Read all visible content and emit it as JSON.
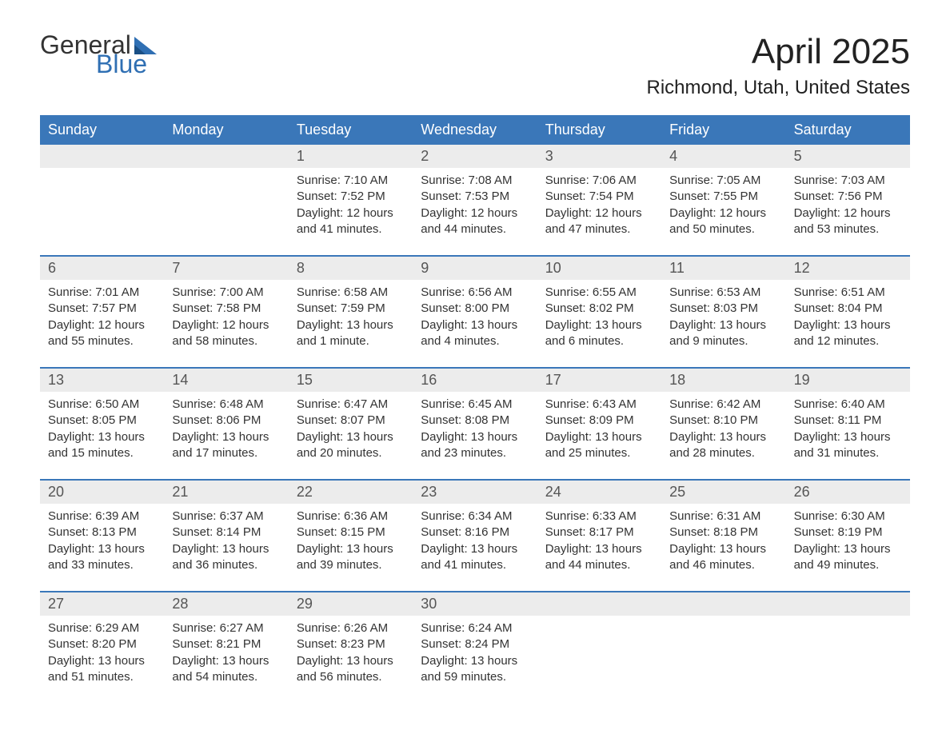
{
  "logo": {
    "general": "General",
    "blue": "Blue"
  },
  "header": {
    "month_title": "April 2025",
    "location": "Richmond, Utah, United States"
  },
  "style": {
    "accent_color": "#3a77b9",
    "header_text_color": "#ffffff",
    "daynum_bg": "#ececec",
    "body_text_color": "#333333",
    "logo_blue": "#2f6fb3",
    "background": "#ffffff",
    "title_fontsize": 44,
    "location_fontsize": 24,
    "dayheader_fontsize": 18,
    "cell_fontsize": 15
  },
  "day_names": [
    "Sunday",
    "Monday",
    "Tuesday",
    "Wednesday",
    "Thursday",
    "Friday",
    "Saturday"
  ],
  "weeks": [
    [
      {
        "num": "",
        "sunrise": "",
        "sunset": "",
        "daylight": ""
      },
      {
        "num": "",
        "sunrise": "",
        "sunset": "",
        "daylight": ""
      },
      {
        "num": "1",
        "sunrise": "Sunrise: 7:10 AM",
        "sunset": "Sunset: 7:52 PM",
        "daylight": "Daylight: 12 hours and 41 minutes."
      },
      {
        "num": "2",
        "sunrise": "Sunrise: 7:08 AM",
        "sunset": "Sunset: 7:53 PM",
        "daylight": "Daylight: 12 hours and 44 minutes."
      },
      {
        "num": "3",
        "sunrise": "Sunrise: 7:06 AM",
        "sunset": "Sunset: 7:54 PM",
        "daylight": "Daylight: 12 hours and 47 minutes."
      },
      {
        "num": "4",
        "sunrise": "Sunrise: 7:05 AM",
        "sunset": "Sunset: 7:55 PM",
        "daylight": "Daylight: 12 hours and 50 minutes."
      },
      {
        "num": "5",
        "sunrise": "Sunrise: 7:03 AM",
        "sunset": "Sunset: 7:56 PM",
        "daylight": "Daylight: 12 hours and 53 minutes."
      }
    ],
    [
      {
        "num": "6",
        "sunrise": "Sunrise: 7:01 AM",
        "sunset": "Sunset: 7:57 PM",
        "daylight": "Daylight: 12 hours and 55 minutes."
      },
      {
        "num": "7",
        "sunrise": "Sunrise: 7:00 AM",
        "sunset": "Sunset: 7:58 PM",
        "daylight": "Daylight: 12 hours and 58 minutes."
      },
      {
        "num": "8",
        "sunrise": "Sunrise: 6:58 AM",
        "sunset": "Sunset: 7:59 PM",
        "daylight": "Daylight: 13 hours and 1 minute."
      },
      {
        "num": "9",
        "sunrise": "Sunrise: 6:56 AM",
        "sunset": "Sunset: 8:00 PM",
        "daylight": "Daylight: 13 hours and 4 minutes."
      },
      {
        "num": "10",
        "sunrise": "Sunrise: 6:55 AM",
        "sunset": "Sunset: 8:02 PM",
        "daylight": "Daylight: 13 hours and 6 minutes."
      },
      {
        "num": "11",
        "sunrise": "Sunrise: 6:53 AM",
        "sunset": "Sunset: 8:03 PM",
        "daylight": "Daylight: 13 hours and 9 minutes."
      },
      {
        "num": "12",
        "sunrise": "Sunrise: 6:51 AM",
        "sunset": "Sunset: 8:04 PM",
        "daylight": "Daylight: 13 hours and 12 minutes."
      }
    ],
    [
      {
        "num": "13",
        "sunrise": "Sunrise: 6:50 AM",
        "sunset": "Sunset: 8:05 PM",
        "daylight": "Daylight: 13 hours and 15 minutes."
      },
      {
        "num": "14",
        "sunrise": "Sunrise: 6:48 AM",
        "sunset": "Sunset: 8:06 PM",
        "daylight": "Daylight: 13 hours and 17 minutes."
      },
      {
        "num": "15",
        "sunrise": "Sunrise: 6:47 AM",
        "sunset": "Sunset: 8:07 PM",
        "daylight": "Daylight: 13 hours and 20 minutes."
      },
      {
        "num": "16",
        "sunrise": "Sunrise: 6:45 AM",
        "sunset": "Sunset: 8:08 PM",
        "daylight": "Daylight: 13 hours and 23 minutes."
      },
      {
        "num": "17",
        "sunrise": "Sunrise: 6:43 AM",
        "sunset": "Sunset: 8:09 PM",
        "daylight": "Daylight: 13 hours and 25 minutes."
      },
      {
        "num": "18",
        "sunrise": "Sunrise: 6:42 AM",
        "sunset": "Sunset: 8:10 PM",
        "daylight": "Daylight: 13 hours and 28 minutes."
      },
      {
        "num": "19",
        "sunrise": "Sunrise: 6:40 AM",
        "sunset": "Sunset: 8:11 PM",
        "daylight": "Daylight: 13 hours and 31 minutes."
      }
    ],
    [
      {
        "num": "20",
        "sunrise": "Sunrise: 6:39 AM",
        "sunset": "Sunset: 8:13 PM",
        "daylight": "Daylight: 13 hours and 33 minutes."
      },
      {
        "num": "21",
        "sunrise": "Sunrise: 6:37 AM",
        "sunset": "Sunset: 8:14 PM",
        "daylight": "Daylight: 13 hours and 36 minutes."
      },
      {
        "num": "22",
        "sunrise": "Sunrise: 6:36 AM",
        "sunset": "Sunset: 8:15 PM",
        "daylight": "Daylight: 13 hours and 39 minutes."
      },
      {
        "num": "23",
        "sunrise": "Sunrise: 6:34 AM",
        "sunset": "Sunset: 8:16 PM",
        "daylight": "Daylight: 13 hours and 41 minutes."
      },
      {
        "num": "24",
        "sunrise": "Sunrise: 6:33 AM",
        "sunset": "Sunset: 8:17 PM",
        "daylight": "Daylight: 13 hours and 44 minutes."
      },
      {
        "num": "25",
        "sunrise": "Sunrise: 6:31 AM",
        "sunset": "Sunset: 8:18 PM",
        "daylight": "Daylight: 13 hours and 46 minutes."
      },
      {
        "num": "26",
        "sunrise": "Sunrise: 6:30 AM",
        "sunset": "Sunset: 8:19 PM",
        "daylight": "Daylight: 13 hours and 49 minutes."
      }
    ],
    [
      {
        "num": "27",
        "sunrise": "Sunrise: 6:29 AM",
        "sunset": "Sunset: 8:20 PM",
        "daylight": "Daylight: 13 hours and 51 minutes."
      },
      {
        "num": "28",
        "sunrise": "Sunrise: 6:27 AM",
        "sunset": "Sunset: 8:21 PM",
        "daylight": "Daylight: 13 hours and 54 minutes."
      },
      {
        "num": "29",
        "sunrise": "Sunrise: 6:26 AM",
        "sunset": "Sunset: 8:23 PM",
        "daylight": "Daylight: 13 hours and 56 minutes."
      },
      {
        "num": "30",
        "sunrise": "Sunrise: 6:24 AM",
        "sunset": "Sunset: 8:24 PM",
        "daylight": "Daylight: 13 hours and 59 minutes."
      },
      {
        "num": "",
        "sunrise": "",
        "sunset": "",
        "daylight": ""
      },
      {
        "num": "",
        "sunrise": "",
        "sunset": "",
        "daylight": ""
      },
      {
        "num": "",
        "sunrise": "",
        "sunset": "",
        "daylight": ""
      }
    ]
  ]
}
